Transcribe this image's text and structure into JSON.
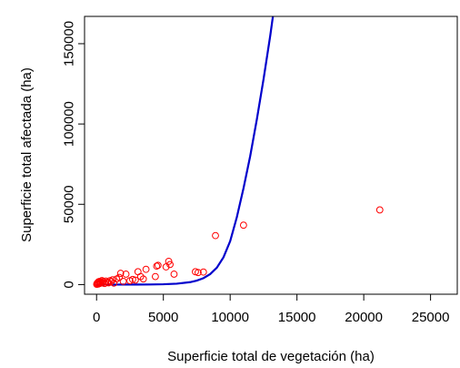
{
  "chart_data": {
    "type": "scatter",
    "title": "",
    "xlabel": "Superficie total de vegetación (ha)",
    "ylabel": "Superficie total afectada (ha)",
    "xlim": [
      -900,
      27000
    ],
    "ylim": [
      -6000,
      167000
    ],
    "x_ticks": [
      0,
      5000,
      10000,
      15000,
      20000,
      25000
    ],
    "y_ticks": [
      0,
      50000,
      100000,
      150000
    ],
    "x_tick_labels": [
      "0",
      "5000",
      "10000",
      "15000",
      "20000",
      "25000"
    ],
    "y_tick_labels": [
      "0",
      "50000",
      "100000",
      "150000"
    ],
    "grid": false,
    "legend": "none",
    "colors": {
      "points": "#ff0000",
      "curve": "#0000cc",
      "axis": "#000000"
    },
    "series": [
      {
        "kind": "points",
        "x": [
          10,
          40,
          60,
          90,
          120,
          150,
          200,
          240,
          300,
          350,
          400,
          450,
          500,
          600,
          700,
          800,
          900,
          1000,
          1100,
          1200,
          1300,
          1500,
          1700,
          1800,
          2000,
          2200,
          2500,
          2700,
          2900,
          3100,
          3300,
          3500,
          3700,
          4400,
          4500,
          4600,
          5200,
          5400,
          5500,
          5800,
          7400,
          7600,
          8000,
          8900,
          11000,
          21200
        ],
        "y": [
          200,
          800,
          400,
          1200,
          300,
          1800,
          600,
          2000,
          900,
          1500,
          2500,
          1000,
          1900,
          700,
          2200,
          1400,
          1100,
          2400,
          1800,
          3000,
          900,
          3500,
          4500,
          7000,
          2000,
          6500,
          2400,
          3200,
          2800,
          8000,
          5000,
          3500,
          9500,
          5000,
          11500,
          12000,
          11000,
          14500,
          12500,
          6500,
          8000,
          7500,
          7800,
          30500,
          37000,
          46500
        ]
      },
      {
        "kind": "curve",
        "x": [
          0,
          1000,
          2000,
          3000,
          4000,
          5000,
          6000,
          7000,
          7500,
          8000,
          8500,
          9000,
          9500,
          10000,
          10500,
          11000,
          11500,
          12000,
          12500,
          13000,
          13250
        ],
        "y": [
          0,
          2,
          8,
          25,
          70,
          200,
          550,
          1500,
          2500,
          4000,
          6500,
          10500,
          17000,
          27000,
          42000,
          60000,
          80000,
          103000,
          128000,
          155000,
          170000
        ]
      }
    ]
  }
}
